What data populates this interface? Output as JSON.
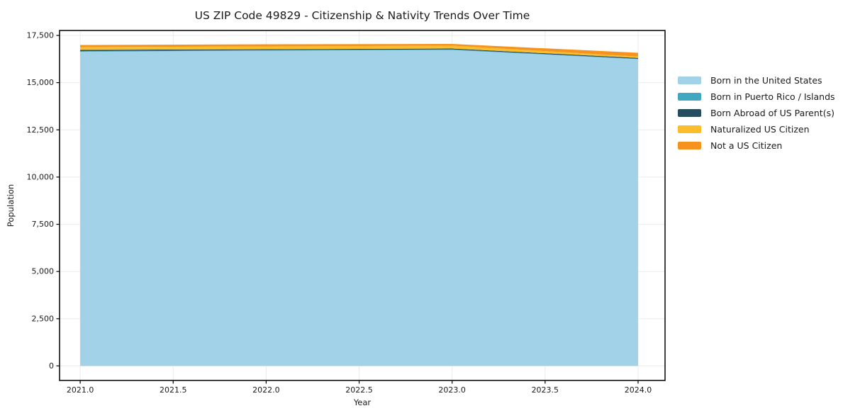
{
  "page": {
    "background": "#ffffff"
  },
  "colors": {
    "grid": "#ececec",
    "frame": "#000000",
    "text": "#1a1a1a"
  },
  "chart_data": {
    "type": "area",
    "stacked": true,
    "title": "US ZIP Code 49829 - Citizenship & Nativity Trends Over Time",
    "xlabel": "Year",
    "ylabel": "Population",
    "grid": true,
    "legend_position": "right-outside",
    "x": [
      2021,
      2022,
      2023,
      2024
    ],
    "series": [
      {
        "name": "Born in the United States",
        "color": "#A2D2E8",
        "values": [
          16637,
          16694,
          16731,
          16243
        ]
      },
      {
        "name": "Born in Puerto Rico / Islands",
        "color": "#40A7C0",
        "values": [
          30,
          30,
          28,
          20
        ]
      },
      {
        "name": "Born Abroad of US Parent(s)",
        "color": "#254C5F",
        "values": [
          64,
          45,
          47,
          44
        ]
      },
      {
        "name": "Naturalized US Citizen",
        "color": "#FBBE2B",
        "values": [
          150,
          149,
          150,
          74
        ]
      },
      {
        "name": "Not a US Citizen",
        "color": "#F6931E",
        "values": [
          112,
          112,
          94,
          199
        ]
      }
    ],
    "totals": [
      16993,
      17030,
      17050,
      16580
    ],
    "x_ticks": [
      "2021.0",
      "2021.5",
      "2022.0",
      "2022.5",
      "2023.0",
      "2023.5",
      "2024.0"
    ],
    "y_ticks": [
      "0",
      "2,500",
      "5,000",
      "7,500",
      "10,000",
      "12,500",
      "15,000",
      "17,500"
    ],
    "xlim": [
      2020.889,
      2024.145
    ],
    "ylim": [
      -769,
      17762
    ]
  }
}
